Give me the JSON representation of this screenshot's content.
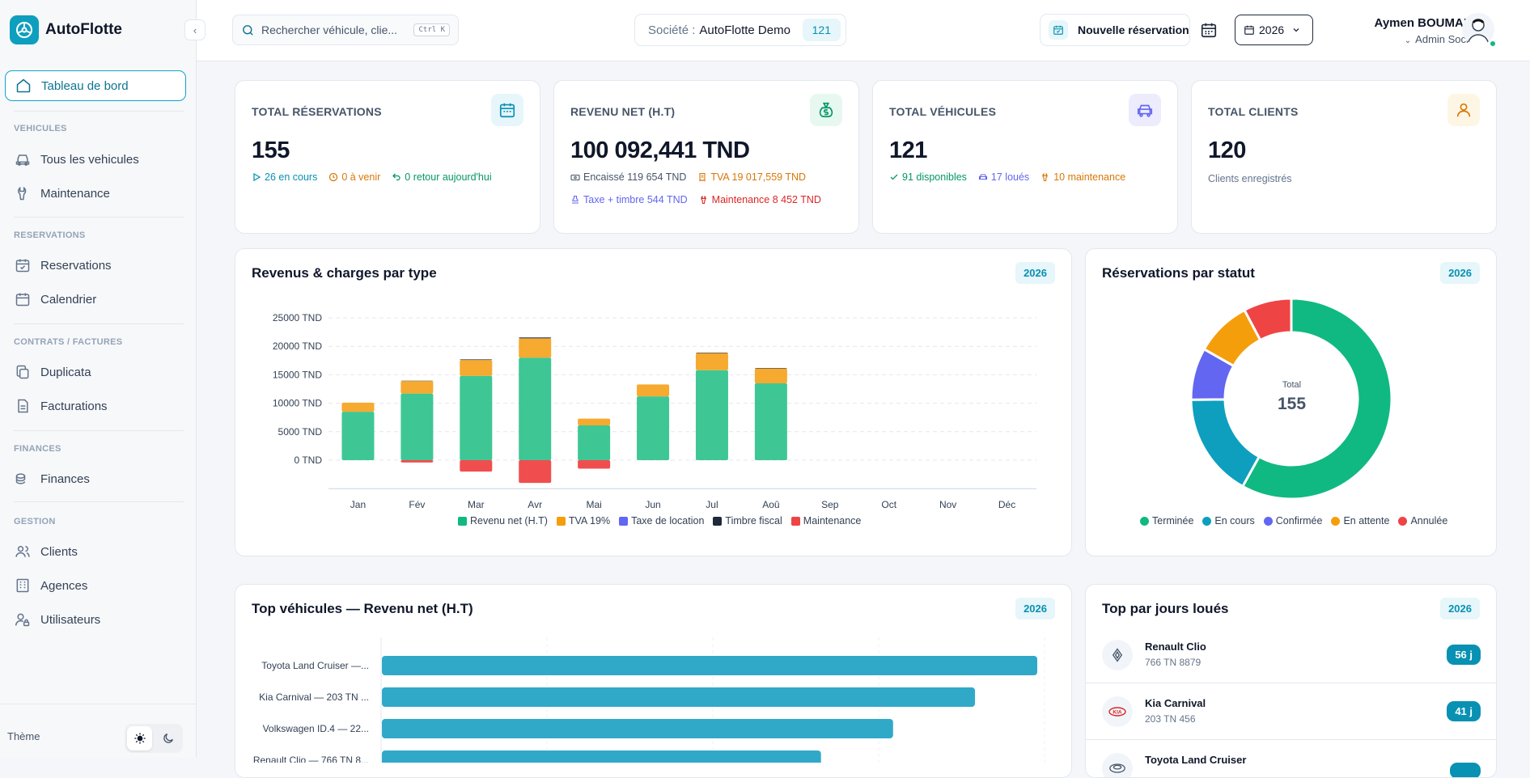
{
  "brand": {
    "name": "AutoFlotte"
  },
  "sidebar": {
    "active": "Tableau de bord",
    "sections": [
      {
        "title": "VEHICULES",
        "items": [
          "Tous les vehicules",
          "Maintenance"
        ]
      },
      {
        "title": "RESERVATIONS",
        "items": [
          "Reservations",
          "Calendrier"
        ]
      },
      {
        "title": "CONTRATS / FACTURES",
        "items": [
          "Duplicata",
          "Facturations"
        ]
      },
      {
        "title": "FINANCES",
        "items": [
          "Finances"
        ]
      },
      {
        "title": "GESTION",
        "items": [
          "Clients",
          "Agences",
          "Utilisateurs"
        ]
      }
    ],
    "theme_label": "Thème"
  },
  "topbar": {
    "search_placeholder": "Rechercher véhicule, clie...",
    "search_shortcut": "Ctrl K",
    "company_label": "Société :",
    "company_name": "AutoFlotte Demo",
    "company_count": "121",
    "new_reservation": "Nouvelle réservation",
    "year": "2026",
    "user_name": "Aymen BOUMAIZA",
    "user_role": "Admin Société"
  },
  "kpis": {
    "reservations": {
      "title": "TOTAL RÉSERVATIONS",
      "value": "155",
      "in_progress": "26 en cours",
      "upcoming": "0 à venir",
      "returns": "0 retour aujourd'hui"
    },
    "revenue": {
      "title": "REVENU NET (H.T)",
      "value": "100 092,441 TND",
      "cashed": "Encaissé 119 654 TND",
      "vat": "TVA 19 017,559 TND",
      "tax": "Taxe + timbre 544 TND",
      "maintenance": "Maintenance 8 452 TND"
    },
    "vehicles": {
      "title": "TOTAL VÉHICULES",
      "value": "121",
      "available": "91 disponibles",
      "rented": "17 loués",
      "maintenance": "10 maintenance"
    },
    "clients": {
      "title": "TOTAL CLIENTS",
      "value": "120",
      "sub": "Clients enregistrés"
    }
  },
  "revenue_chart": {
    "title": "Revenus & charges par type",
    "year": "2026",
    "chart_data": {
      "type": "bar",
      "stacked": true,
      "categories": [
        "Jan",
        "Fév",
        "Mar",
        "Avr",
        "Mai",
        "Jun",
        "Jul",
        "Aoû",
        "Sep",
        "Oct",
        "Nov",
        "Déc"
      ],
      "y_ticks": [
        "25000 TND",
        "20000 TND",
        "15000 TND",
        "10000 TND",
        "5000 TND",
        "0 TND"
      ],
      "ylim": [
        -5000,
        25000
      ],
      "series": [
        {
          "name": "Revenu net (H.T)",
          "color": "#34c48f",
          "values": [
            8500,
            11700,
            14800,
            18000,
            6100,
            11200,
            15800,
            13500,
            0,
            0,
            0,
            0
          ]
        },
        {
          "name": "TVA 19%",
          "color": "#f5a524",
          "values": [
            1600,
            2200,
            2800,
            3400,
            1200,
            2100,
            3000,
            2600,
            0,
            0,
            0,
            0
          ]
        },
        {
          "name": "Taxe de location",
          "color": "#6366f1",
          "values": [
            0,
            0,
            0,
            0,
            0,
            0,
            0,
            0,
            0,
            0,
            0,
            0
          ]
        },
        {
          "name": "Timbre fiscal",
          "color": "#1e293b",
          "values": [
            0,
            50,
            100,
            150,
            0,
            0,
            100,
            100,
            0,
            0,
            0,
            0
          ]
        },
        {
          "name": "Maintenance",
          "color": "#ef4444",
          "values": [
            0,
            -400,
            -2000,
            -4000,
            -1500,
            0,
            0,
            0,
            0,
            0,
            0,
            0
          ]
        }
      ]
    }
  },
  "status_chart": {
    "title": "Réservations par statut",
    "year": "2026",
    "center_label": "Total",
    "center_value": "155",
    "chart_data": {
      "type": "pie",
      "series": [
        {
          "name": "Terminée",
          "color": "#10b981",
          "value": 90
        },
        {
          "name": "En cours",
          "color": "#0e9fbf",
          "value": 26
        },
        {
          "name": "Confirmée",
          "color": "#6366f1",
          "value": 13
        },
        {
          "name": "En attente",
          "color": "#f59e0b",
          "value": 14
        },
        {
          "name": "Annulée",
          "color": "#ef4444",
          "value": 12
        }
      ]
    }
  },
  "top_vehicles": {
    "title": "Top véhicules — Revenu net (H.T)",
    "year": "2026",
    "chart_data": {
      "type": "bar",
      "orientation": "horizontal",
      "categories": [
        "Toyota Land Cruiser —...",
        "Kia Carnival — 203 TN ...",
        "Volkswagen ID.4 — 22...",
        "Renault Clio — 766 TN 8..."
      ],
      "values": [
        100,
        90.5,
        78,
        67
      ],
      "color": "#30a9c9"
    }
  },
  "top_days": {
    "title": "Top par jours loués",
    "year": "2026",
    "items": [
      {
        "name": "Renault Clio",
        "plate": "766 TN 8879",
        "days": "56 j",
        "logo": "RENAULT"
      },
      {
        "name": "Kia Carnival",
        "plate": "203 TN 456",
        "days": "41 j",
        "logo": "KIA"
      },
      {
        "name": "Toyota Land Cruiser",
        "plate": "",
        "days": "",
        "logo": "TOYOTA"
      }
    ]
  }
}
